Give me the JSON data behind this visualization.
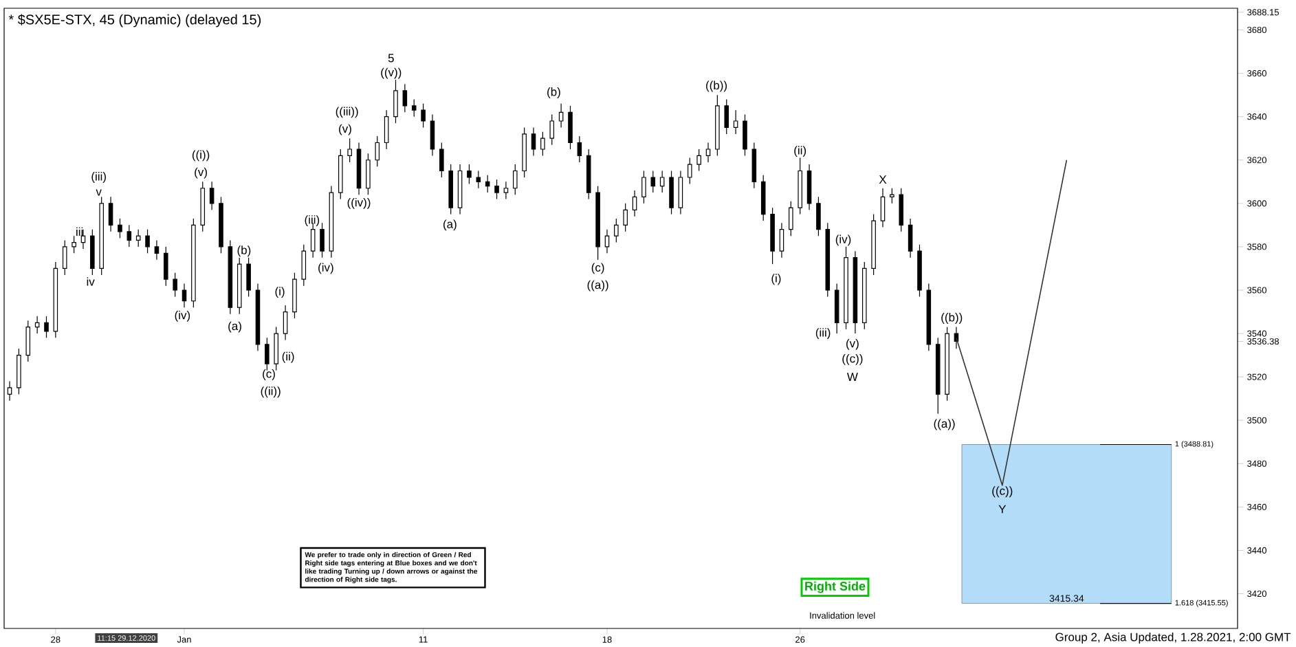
{
  "chart_data": {
    "type": "candlestick",
    "title": "* $SX5E-STX, 45 (Dynamic) (delayed 15)",
    "categories": [
      null,
      null,
      null,
      null,
      null,
      "28",
      null,
      null,
      null,
      null,
      null,
      null,
      null,
      null,
      null,
      null,
      null,
      null,
      null,
      "Jan",
      null,
      null,
      null,
      null,
      null,
      null,
      null,
      null,
      null,
      null,
      null,
      null,
      null,
      null,
      null,
      null,
      null,
      null,
      null,
      null,
      null,
      null,
      null,
      null,
      null,
      "11",
      null,
      null,
      null,
      null,
      null,
      null,
      null,
      null,
      null,
      null,
      null,
      null,
      null,
      null,
      null,
      null,
      null,
      null,
      null,
      "18",
      null,
      null,
      null,
      null,
      null,
      null,
      null,
      null,
      null,
      null,
      null,
      null,
      null,
      null,
      null,
      null,
      null,
      null,
      null,
      null,
      "26",
      null,
      null,
      null,
      null,
      null,
      null,
      null,
      null,
      null,
      null,
      null,
      null,
      null,
      null,
      null,
      null,
      null,
      null,
      null,
      null,
      null,
      null,
      null,
      null,
      null,
      null,
      null,
      null,
      null,
      null,
      null,
      null,
      null,
      null,
      null,
      null,
      null,
      null,
      null,
      null,
      null,
      null,
      null,
      null,
      null,
      null,
      null
    ],
    "ohlc": [
      [
        3512,
        3518,
        3509,
        3515
      ],
      [
        3515,
        3533,
        3512,
        3530
      ],
      [
        3530,
        3546,
        3527,
        3543
      ],
      [
        3543,
        3548,
        3540,
        3545
      ],
      [
        3545,
        3548,
        3538,
        3541
      ],
      [
        3541,
        3573,
        3538,
        3570
      ],
      [
        3570,
        3583,
        3567,
        3580
      ],
      [
        3580,
        3585,
        3577,
        3582
      ],
      [
        3582,
        3588,
        3579,
        3585
      ],
      [
        3585,
        3588,
        3567,
        3570
      ],
      [
        3570,
        3603,
        3567,
        3600
      ],
      [
        3600,
        3603,
        3587,
        3590
      ],
      [
        3590,
        3593,
        3584,
        3587
      ],
      [
        3587,
        3590,
        3580,
        3583
      ],
      [
        3583,
        3588,
        3580,
        3585
      ],
      [
        3585,
        3588,
        3577,
        3580
      ],
      [
        3580,
        3583,
        3574,
        3577
      ],
      [
        3577,
        3580,
        3562,
        3565
      ],
      [
        3565,
        3568,
        3557,
        3560
      ],
      [
        3560,
        3563,
        3552,
        3555
      ],
      [
        3555,
        3593,
        3552,
        3590
      ],
      [
        3590,
        3610,
        3587,
        3607
      ],
      [
        3607,
        3610,
        3597,
        3600
      ],
      [
        3600,
        3603,
        3577,
        3580
      ],
      [
        3580,
        3583,
        3549,
        3552
      ],
      [
        3552,
        3575,
        3549,
        3572
      ],
      [
        3572,
        3575,
        3557,
        3560
      ],
      [
        3560,
        3563,
        3532,
        3535
      ],
      [
        3535,
        3538,
        3523,
        3526
      ],
      [
        3526,
        3543,
        3523,
        3540
      ],
      [
        3540,
        3553,
        3537,
        3550
      ],
      [
        3550,
        3568,
        3547,
        3565
      ],
      [
        3565,
        3581,
        3562,
        3578
      ],
      [
        3578,
        3591,
        3575,
        3588
      ],
      [
        3588,
        3591,
        3575,
        3578
      ],
      [
        3578,
        3608,
        3575,
        3605
      ],
      [
        3605,
        3625,
        3602,
        3622
      ],
      [
        3622,
        3630,
        3619,
        3625
      ],
      [
        3625,
        3628,
        3604,
        3607
      ],
      [
        3607,
        3623,
        3604,
        3620
      ],
      [
        3620,
        3631,
        3617,
        3628
      ],
      [
        3628,
        3643,
        3625,
        3640
      ],
      [
        3640,
        3657,
        3637,
        3652
      ],
      [
        3652,
        3655,
        3642,
        3645
      ],
      [
        3645,
        3648,
        3640,
        3643
      ],
      [
        3643,
        3646,
        3635,
        3638
      ],
      [
        3638,
        3641,
        3622,
        3625
      ],
      [
        3625,
        3628,
        3612,
        3615
      ],
      [
        3615,
        3618,
        3595,
        3598
      ],
      [
        3598,
        3618,
        3595,
        3615
      ],
      [
        3615,
        3618,
        3609,
        3612
      ],
      [
        3612,
        3615,
        3607,
        3610
      ],
      [
        3610,
        3613,
        3605,
        3608
      ],
      [
        3608,
        3611,
        3602,
        3605
      ],
      [
        3605,
        3610,
        3602,
        3607
      ],
      [
        3607,
        3618,
        3604,
        3615
      ],
      [
        3615,
        3635,
        3612,
        3632
      ],
      [
        3632,
        3635,
        3622,
        3625
      ],
      [
        3625,
        3633,
        3622,
        3630
      ],
      [
        3630,
        3641,
        3627,
        3638
      ],
      [
        3638,
        3646,
        3635,
        3642
      ],
      [
        3642,
        3645,
        3625,
        3628
      ],
      [
        3628,
        3631,
        3619,
        3622
      ],
      [
        3622,
        3625,
        3602,
        3605
      ],
      [
        3605,
        3608,
        3574,
        3580
      ],
      [
        3580,
        3588,
        3577,
        3585
      ],
      [
        3585,
        3593,
        3582,
        3590
      ],
      [
        3590,
        3600,
        3587,
        3597
      ],
      [
        3597,
        3606,
        3594,
        3603
      ],
      [
        3603,
        3615,
        3600,
        3612
      ],
      [
        3612,
        3615,
        3605,
        3608
      ],
      [
        3608,
        3615,
        3605,
        3612
      ],
      [
        3612,
        3615,
        3595,
        3598
      ],
      [
        3598,
        3615,
        3595,
        3612
      ],
      [
        3612,
        3621,
        3609,
        3618
      ],
      [
        3618,
        3625,
        3615,
        3622
      ],
      [
        3622,
        3628,
        3619,
        3625
      ],
      [
        3625,
        3650,
        3622,
        3645
      ],
      [
        3645,
        3648,
        3632,
        3635
      ],
      [
        3635,
        3643,
        3632,
        3638
      ],
      [
        3638,
        3641,
        3622,
        3625
      ],
      [
        3625,
        3628,
        3607,
        3610
      ],
      [
        3610,
        3613,
        3592,
        3595
      ],
      [
        3595,
        3598,
        3572,
        3578
      ],
      [
        3578,
        3591,
        3575,
        3588
      ],
      [
        3588,
        3601,
        3585,
        3598
      ],
      [
        3598,
        3621,
        3595,
        3615
      ],
      [
        3615,
        3618,
        3597,
        3600
      ],
      [
        3600,
        3603,
        3585,
        3588
      ],
      [
        3588,
        3591,
        3557,
        3560
      ],
      [
        3560,
        3563,
        3540,
        3545
      ],
      [
        3545,
        3580,
        3542,
        3575
      ],
      [
        3575,
        3578,
        3540,
        3545
      ],
      [
        3545,
        3573,
        3542,
        3570
      ],
      [
        3570,
        3595,
        3567,
        3592
      ],
      [
        3592,
        3607,
        3589,
        3603
      ],
      [
        3603,
        3607,
        3600,
        3604
      ],
      [
        3604,
        3607,
        3587,
        3590
      ],
      [
        3590,
        3593,
        3575,
        3578
      ],
      [
        3578,
        3581,
        3557,
        3560
      ],
      [
        3560,
        3563,
        3532,
        3535
      ],
      [
        3535,
        3538,
        3503,
        3512
      ],
      [
        3512,
        3543,
        3509,
        3540
      ],
      [
        3540,
        3543,
        3533,
        3536.38
      ],
      null,
      null,
      null,
      null,
      null,
      null,
      null,
      null,
      null,
      null,
      null,
      null,
      null,
      null,
      null,
      null,
      null,
      null,
      null,
      null,
      null,
      null,
      null,
      null,
      null,
      null,
      null,
      null,
      null,
      null
    ],
    "series": [
      {
        "type": "line",
        "color": "#333333",
        "values": [
          null,
          null,
          null,
          null,
          null,
          null,
          null,
          null,
          null,
          null,
          null,
          null,
          null,
          null,
          null,
          null,
          null,
          null,
          null,
          null,
          null,
          null,
          null,
          null,
          null,
          null,
          null,
          null,
          null,
          null,
          null,
          null,
          null,
          null,
          null,
          null,
          null,
          null,
          null,
          null,
          null,
          null,
          null,
          null,
          null,
          null,
          null,
          null,
          null,
          null,
          null,
          null,
          null,
          null,
          null,
          null,
          null,
          null,
          null,
          null,
          null,
          null,
          null,
          null,
          null,
          null,
          null,
          null,
          null,
          null,
          null,
          null,
          null,
          null,
          null,
          null,
          null,
          null,
          null,
          null,
          null,
          null,
          null,
          null,
          null,
          null,
          null,
          null,
          null,
          null,
          null,
          null,
          null,
          null,
          null,
          null,
          null,
          null,
          null,
          null,
          null,
          null,
          null,
          3538,
          null,
          null,
          null,
          null,
          3470,
          null,
          null,
          null,
          null,
          null,
          null,
          3620,
          null,
          null,
          null,
          null,
          null,
          null,
          null,
          null,
          null,
          null,
          null,
          null,
          null,
          null,
          null,
          null,
          null,
          null
        ]
      }
    ],
    "ylim": [
      3404,
      3690
    ],
    "yticks": [
      3420,
      3440,
      3460,
      3480,
      3500,
      3520,
      3540,
      3560,
      3580,
      3600,
      3620,
      3640,
      3660,
      3680,
      {
        "value": 3536.38,
        "label": "3536.38"
      },
      {
        "value": 3688.15,
        "label": "3688.15"
      }
    ],
    "bands": [
      {
        "axis": "y",
        "from": 3415.55,
        "to": 3488.81,
        "label": "3415.34",
        "color": "#b3dcf8"
      }
    ],
    "ref_lines": [
      {
        "axis": "y",
        "value": 3488.81,
        "label": "1 (3488.81)"
      },
      {
        "axis": "y",
        "value": 3415.55,
        "label": "1.618 (3415.55)"
      }
    ],
    "annotations": [
      "We prefer to trade only in direction of Green / Red Right side tags entering at Blue boxes and we don't like trading Turning up / down arrows or against the direction of Right side tags.",
      "Right Side",
      "Invalidation level",
      "Group 2, Asia Updated, 1.28.2021, 2:00 GMT",
      "11:15 29.12.2020",
      "(iii)",
      "v",
      "iii",
      "iv",
      "(iv)",
      "(v)",
      "((i))",
      "(b)",
      "(a)",
      "(c)",
      "((ii))",
      "(ii)",
      "(i)",
      "(iii)",
      "(iv)",
      "(v)",
      "((iii))",
      "((iv))",
      "((v))",
      "5",
      "(a)",
      "(b)",
      "(c)",
      "((a))",
      "((b))",
      "(ii)",
      "(i)",
      "X",
      "(iv)",
      "(iii)",
      "(v)",
      "((c))",
      "W",
      "((b))",
      "((a))",
      "((c))",
      "Y"
    ]
  }
}
